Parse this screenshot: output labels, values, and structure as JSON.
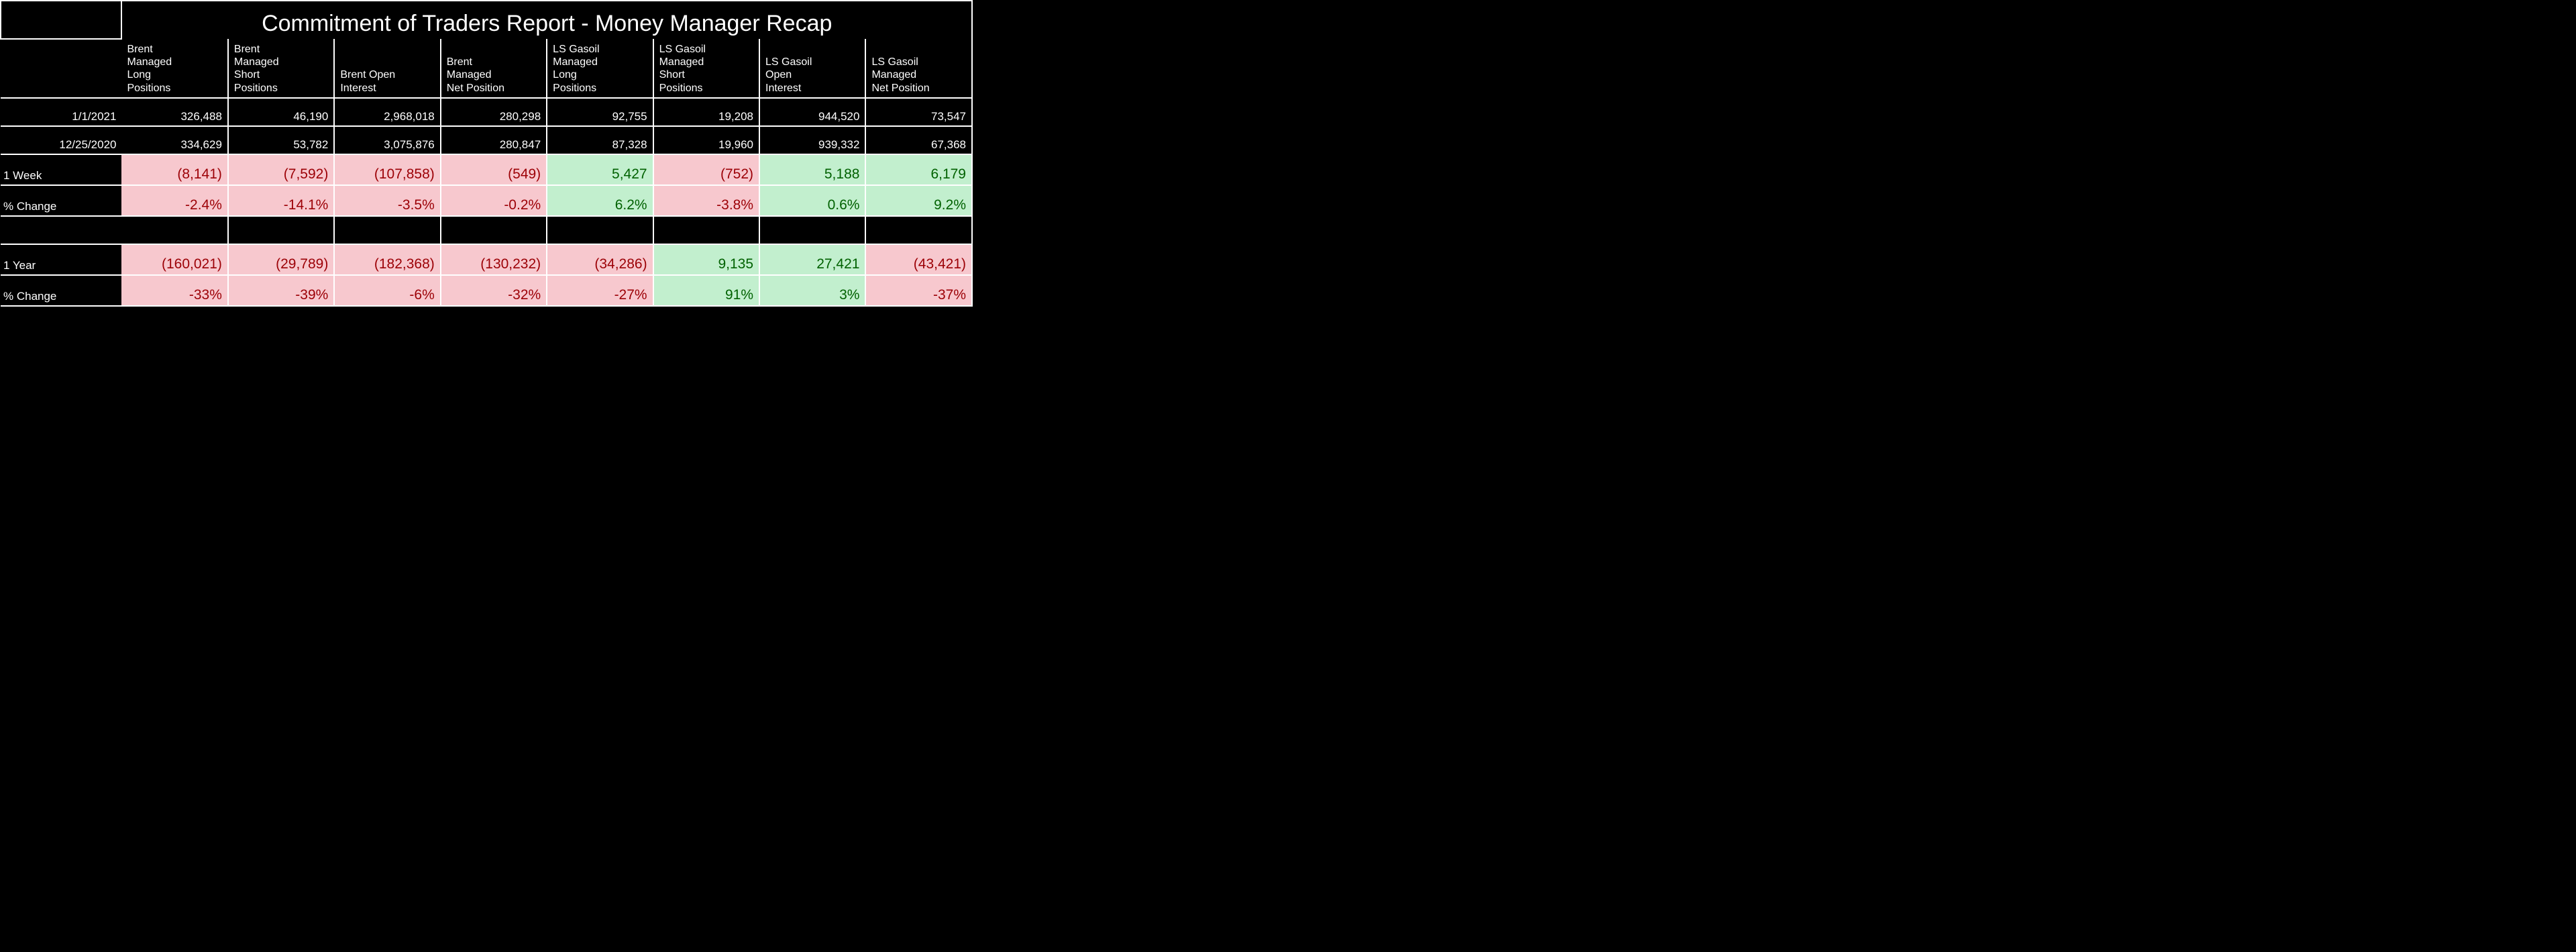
{
  "title": "Commitment of Traders Report - Money Manager Recap",
  "table": {
    "columns": [
      "Brent Managed Long Positions",
      "Brent Managed Short Positions",
      "Brent Open Interest",
      "Brent Managed Net Position",
      "LS Gasoil Managed Long Positions",
      "LS Gasoil Managed Short Positions",
      "LS Gasoil Open Interest",
      "LS Gasoil Managed Net Position"
    ],
    "row_dates": [
      "1/1/2021",
      "12/25/2020"
    ],
    "date_rows": [
      [
        "326,488",
        "46,190",
        "2,968,018",
        "280,298",
        "92,755",
        "19,208",
        "944,520",
        "73,547"
      ],
      [
        "334,629",
        "53,782",
        "3,075,876",
        "280,847",
        "87,328",
        "19,960",
        "939,332",
        "67,368"
      ]
    ],
    "week_label": "1 Week",
    "week_vals": [
      {
        "text": "(8,141)",
        "sign": "neg"
      },
      {
        "text": "(7,592)",
        "sign": "neg"
      },
      {
        "text": "(107,858)",
        "sign": "neg"
      },
      {
        "text": "(549)",
        "sign": "neg"
      },
      {
        "text": "5,427",
        "sign": "pos"
      },
      {
        "text": "(752)",
        "sign": "neg"
      },
      {
        "text": "5,188",
        "sign": "pos"
      },
      {
        "text": "6,179",
        "sign": "pos"
      }
    ],
    "week_pct_label": "% Change",
    "week_pct": [
      {
        "text": "-2.4%",
        "sign": "neg"
      },
      {
        "text": "-14.1%",
        "sign": "neg"
      },
      {
        "text": "-3.5%",
        "sign": "neg"
      },
      {
        "text": "-0.2%",
        "sign": "neg"
      },
      {
        "text": "6.2%",
        "sign": "pos"
      },
      {
        "text": "-3.8%",
        "sign": "neg"
      },
      {
        "text": "0.6%",
        "sign": "pos"
      },
      {
        "text": "9.2%",
        "sign": "pos"
      }
    ],
    "year_label": "1 Year",
    "year_vals": [
      {
        "text": "(160,021)",
        "sign": "neg"
      },
      {
        "text": "(29,789)",
        "sign": "neg"
      },
      {
        "text": "(182,368)",
        "sign": "neg"
      },
      {
        "text": "(130,232)",
        "sign": "neg"
      },
      {
        "text": "(34,286)",
        "sign": "neg"
      },
      {
        "text": "9,135",
        "sign": "pos"
      },
      {
        "text": "27,421",
        "sign": "pos"
      },
      {
        "text": "(43,421)",
        "sign": "neg"
      }
    ],
    "year_pct_label": "% Change",
    "year_pct": [
      {
        "text": "-33%",
        "sign": "neg"
      },
      {
        "text": "-39%",
        "sign": "neg"
      },
      {
        "text": "-6%",
        "sign": "neg"
      },
      {
        "text": "-32%",
        "sign": "neg"
      },
      {
        "text": "-27%",
        "sign": "neg"
      },
      {
        "text": "91%",
        "sign": "pos"
      },
      {
        "text": "3%",
        "sign": "pos"
      },
      {
        "text": "-37%",
        "sign": "neg"
      }
    ]
  },
  "colors": {
    "neg_bg": "#f7c8ce",
    "neg_fg": "#9c0006",
    "pos_bg": "#c2efce",
    "pos_fg": "#006100",
    "border": "#ffffff",
    "text": "#ffffff",
    "background": "#000000"
  }
}
